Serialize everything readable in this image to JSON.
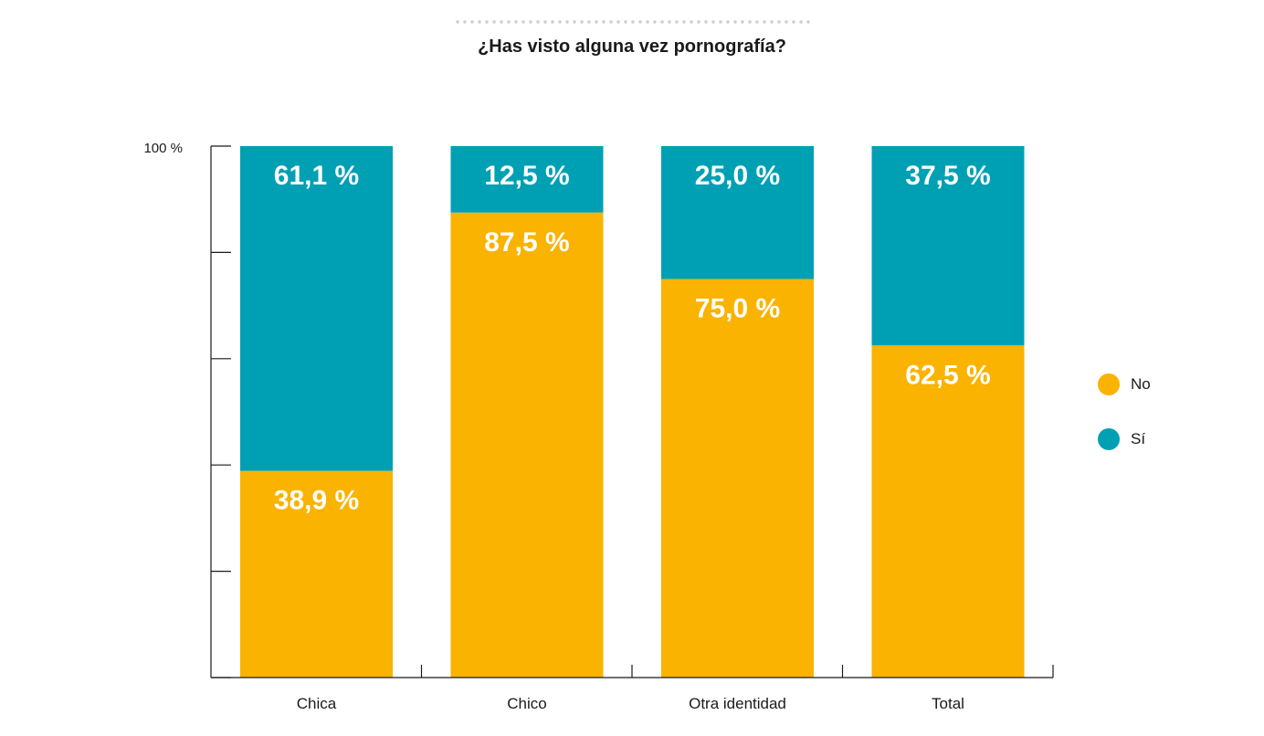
{
  "header": {
    "title": "¿Has visto alguna vez pornografía?"
  },
  "colors": {
    "no": "#f9b300",
    "si": "#00a0b4",
    "axis": "#1a1a1a"
  },
  "legend": [
    {
      "label": "No",
      "color": "#f9b300"
    },
    {
      "label": "Sí",
      "color": "#00a0b4"
    }
  ],
  "chart_data": {
    "type": "bar",
    "stacked": true,
    "title": "¿Has visto alguna vez pornografía?",
    "categories": [
      "Chica",
      "Chico",
      "Otra identidad",
      "Total"
    ],
    "series": [
      {
        "name": "No",
        "values": [
          38.9,
          87.5,
          75.0,
          62.5
        ]
      },
      {
        "name": "Sí",
        "values": [
          61.1,
          12.5,
          25.0,
          37.5
        ]
      }
    ],
    "value_labels": {
      "No": [
        "38,9 %",
        "87,5 %",
        "75,0 %",
        "62,5 %"
      ],
      "Sí": [
        "61,1 %",
        "12,5 %",
        "25,0 %",
        "37,5 %"
      ]
    },
    "ylim": [
      0,
      100
    ],
    "y_tick_label": "100 %",
    "legend_position": "right",
    "grid": false
  }
}
